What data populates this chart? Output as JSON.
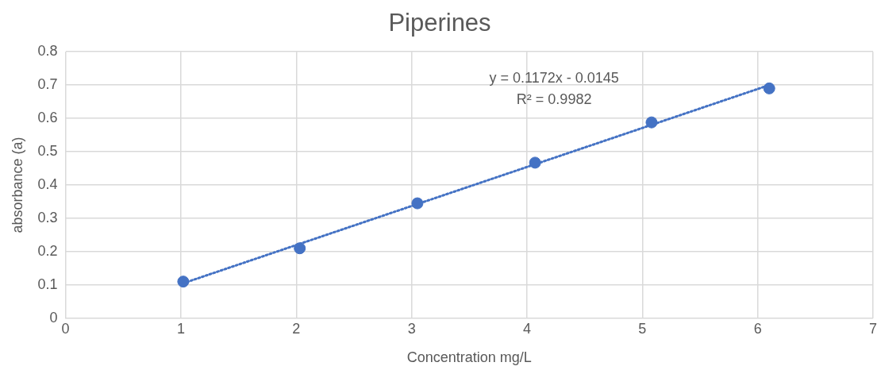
{
  "chart_data": {
    "type": "scatter",
    "title": "Piperines",
    "xlabel": "Concentration mg/L",
    "ylabel": "absorbance (a)",
    "series": [
      {
        "type": "scatter",
        "color": "#4472c4",
        "x": [
          1.02,
          2.03,
          3.05,
          4.07,
          5.08,
          6.1
        ],
        "values": [
          0.11,
          0.21,
          0.345,
          0.467,
          0.588,
          0.69
        ],
        "marker": "circle"
      },
      {
        "type": "line",
        "color": "#4472c4",
        "x": [
          1.02,
          6.1
        ],
        "values": [
          0.105,
          0.7
        ],
        "marker": "none",
        "line_style": "dotted"
      }
    ],
    "annotations": [
      "y = 0.1172x - 0.0145",
      "R² = 0.9982"
    ],
    "xlim": [
      0,
      7
    ],
    "xticks": [
      0,
      1,
      2,
      3,
      4,
      5,
      6,
      7
    ],
    "ylim": [
      0,
      0.8
    ],
    "yticks": [
      0,
      0.1,
      0.2,
      0.3,
      0.4,
      0.5,
      0.6,
      0.7,
      0.8
    ],
    "grid": true,
    "legend": false
  }
}
